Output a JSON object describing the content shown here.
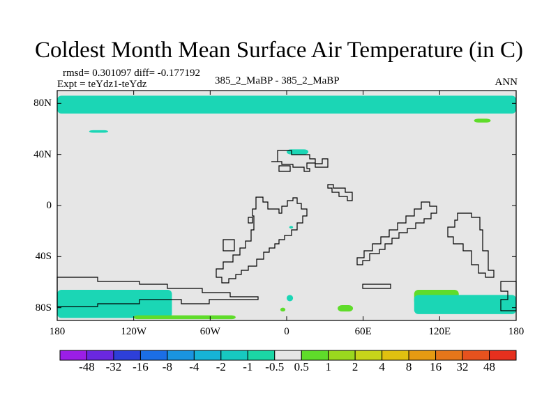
{
  "chart_data": {
    "type": "heatmap",
    "title": "Coldest Month Mean Surface Air Temperature (in C)",
    "stats_line": "rmsd= 0.301097  diff= -0.177192",
    "expt_line": "Expt = teYdz1-teYdz",
    "center_label": "385_2_MaBP - 385_2_MaBP",
    "season_label": "ANN",
    "x_ticks": [
      "180",
      "120W",
      "60W",
      "0",
      "60E",
      "120E",
      "180"
    ],
    "y_ticks": [
      "80N",
      "40N",
      "0",
      "40S",
      "80S"
    ],
    "xlim": [
      -180,
      180
    ],
    "ylim": [
      -90,
      90
    ],
    "colorbar": {
      "labels": [
        "-48",
        "-32",
        "-16",
        "-8",
        "-4",
        "-2",
        "-1",
        "-0.5",
        "0.5",
        "1",
        "2",
        "4",
        "8",
        "16",
        "32",
        "48"
      ],
      "colors": [
        "#9b1ee6",
        "#6a28e0",
        "#2d3fd9",
        "#1b6ee6",
        "#1a94e0",
        "#16b3d6",
        "#17c9c0",
        "#1bd6a5",
        "#e6e6e6",
        "#5fdc2a",
        "#9ad81e",
        "#c6d41a",
        "#e0c010",
        "#e69a12",
        "#e6761a",
        "#e6521e",
        "#e6301e"
      ]
    },
    "regions": [
      {
        "band": "-1 to -0.5",
        "lon": [
          -180,
          180
        ],
        "lat": [
          72,
          86
        ],
        "note": "arctic band"
      },
      {
        "band": "-1 to -0.5",
        "lon": [
          -155,
          -140
        ],
        "lat": [
          57,
          59
        ]
      },
      {
        "band": "0.5 to 1",
        "lon": [
          147,
          160
        ],
        "lat": [
          65,
          68
        ]
      },
      {
        "band": "-1 to -0.5",
        "lon": [
          0,
          17
        ],
        "lat": [
          40,
          44
        ]
      },
      {
        "band": "-1 to -0.5",
        "lon": [
          2,
          5
        ],
        "lat": [
          -18,
          -16
        ]
      },
      {
        "band": "-1 to -0.5",
        "lon": [
          -180,
          -90
        ],
        "lat": [
          -88,
          -66
        ],
        "note": "southern ocean west"
      },
      {
        "band": "-1 to -0.5",
        "lon": [
          0,
          5
        ],
        "lat": [
          -75,
          -70
        ]
      },
      {
        "band": "0.5 to 1",
        "lon": [
          -120,
          -40
        ],
        "lat": [
          -89,
          -86
        ]
      },
      {
        "band": "0.5 to 1",
        "lon": [
          -5,
          -1
        ],
        "lat": [
          -83,
          -80
        ]
      },
      {
        "band": "0.5 to 1",
        "lon": [
          40,
          52
        ],
        "lat": [
          -83,
          -78
        ]
      },
      {
        "band": "0.5 to 1",
        "lon": [
          100,
          135
        ],
        "lat": [
          -78,
          -66
        ]
      },
      {
        "band": "-1 to -0.5",
        "lon": [
          100,
          180
        ],
        "lat": [
          -85,
          -70
        ],
        "note": "southern ocean east"
      }
    ]
  }
}
